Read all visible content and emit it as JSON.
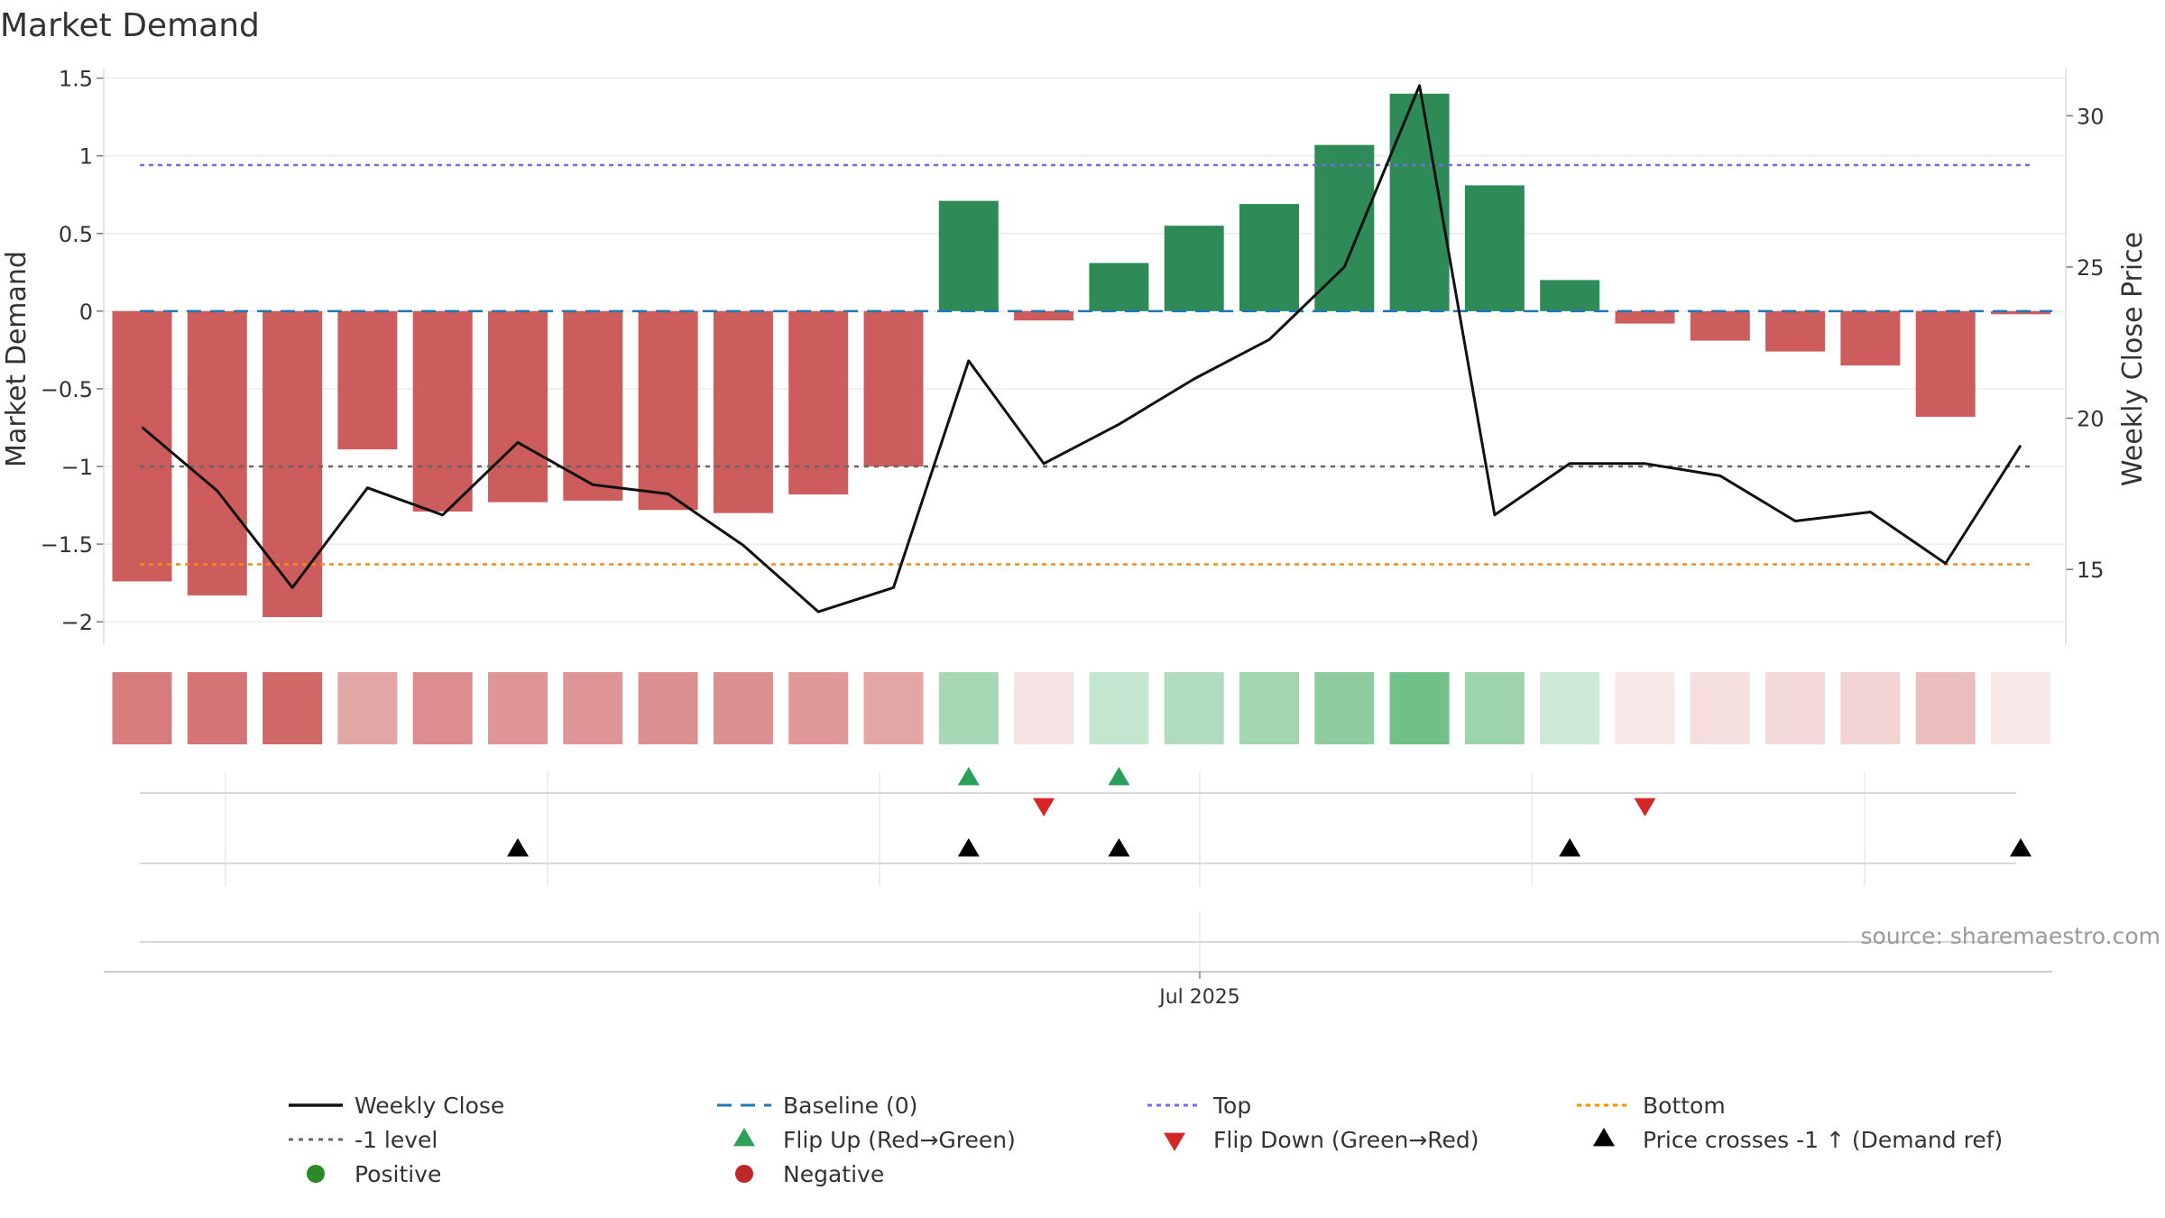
{
  "chart_data": {
    "type": "bar",
    "title": "Market Demand",
    "ylabel": "Market Demand",
    "y2label": "Weekly Close Price",
    "ylim": [
      -2.15,
      1.55
    ],
    "y_ticks": [
      1.5,
      1,
      0.5,
      0,
      -0.5,
      -1,
      -1.5,
      -2
    ],
    "y_tick_labels": [
      "1.5",
      "1",
      "0.5",
      "0",
      "−0.5",
      "−1",
      "−1.5",
      "−2"
    ],
    "y2lim": [
      12.5,
      31.5
    ],
    "y2_ticks": [
      30,
      25,
      20,
      15
    ],
    "y2_tick_labels": [
      "30",
      "25",
      "20",
      "15"
    ],
    "x_tick_labels": [
      "Jul 2025"
    ],
    "colors": {
      "positive": "#2e8b57",
      "negative": "#cd5c5c",
      "weekly_close": "#111111",
      "baseline": "#1f77b4",
      "top": "#7b68ee",
      "bottom": "#ff8c00",
      "minus_one": "#666666",
      "flip_up": "#2ca05a",
      "flip_down": "#d62728",
      "cross": "#000000"
    },
    "series": [
      {
        "name": "Market Demand",
        "values": [
          -1.74,
          -1.83,
          -1.97,
          -0.89,
          -1.29,
          -1.23,
          -1.22,
          -1.28,
          -1.3,
          -1.18,
          -1.0,
          0.71,
          -0.06,
          0.31,
          0.55,
          0.69,
          1.07,
          1.4,
          0.81,
          0.2,
          -0.08,
          -0.19,
          -0.26,
          -0.35,
          -0.68,
          -0.02
        ]
      },
      {
        "name": "Weekly Close",
        "values": [
          19.7,
          17.6,
          14.4,
          17.7,
          16.8,
          19.2,
          17.8,
          17.5,
          15.8,
          13.6,
          14.4,
          21.9,
          18.5,
          19.8,
          21.3,
          22.6,
          25.0,
          31.0,
          16.8,
          18.5,
          18.5,
          18.1,
          16.6,
          16.9,
          15.2,
          19.1
        ]
      }
    ],
    "reference_lines": {
      "baseline": 0,
      "top": 0.94,
      "bottom": -1.63,
      "minus_one": -1
    },
    "heat_strip_intensity": [
      0.8,
      0.85,
      0.92,
      0.55,
      0.7,
      0.65,
      0.65,
      0.68,
      0.68,
      0.63,
      0.55,
      0.45,
      0.18,
      0.3,
      0.4,
      0.47,
      0.57,
      0.72,
      0.5,
      0.25,
      0.15,
      0.2,
      0.22,
      0.27,
      0.4,
      0.15
    ],
    "flip_up_indices": [
      11,
      13
    ],
    "flip_down_indices": [
      12,
      20
    ],
    "price_cross_indices": [
      5,
      11,
      13,
      19,
      25
    ],
    "source": "source: sharemaestro.com",
    "legend": [
      "Weekly Close",
      "Baseline (0)",
      "Top",
      "Bottom",
      "-1 level",
      "Flip Up (Red→Green)",
      "Flip Down (Green→Red)",
      "Price crosses -1 ↑ (Demand ref)",
      "Positive",
      "Negative"
    ]
  }
}
